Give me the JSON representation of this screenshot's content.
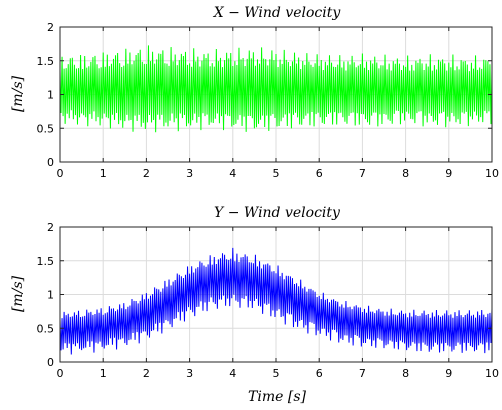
{
  "chart_data": [
    {
      "type": "line",
      "title": "X − Wind velocity",
      "ylabel": "[m/s]",
      "xlabel": "",
      "xlim": [
        0,
        10
      ],
      "ylim": [
        0,
        2
      ],
      "xticks": [
        "0",
        "1",
        "2",
        "3",
        "4",
        "5",
        "6",
        "7",
        "8",
        "9",
        "10"
      ],
      "yticks": [
        "0",
        "0.5",
        "1",
        "1.5",
        "2"
      ],
      "grid": true,
      "color": "#00ff00",
      "series": [
        {
          "x": [
            0,
            0.5,
            1,
            1.5,
            2,
            2.5,
            3,
            3.5,
            4,
            4.5,
            5,
            5.5,
            6,
            6.5,
            7,
            7.5,
            8,
            8.5,
            9,
            9.5,
            10
          ],
          "mean": [
            1.05,
            1.05,
            1.05,
            1.05,
            1.05,
            1.05,
            1.05,
            1.05,
            1.05,
            1.05,
            1.05,
            1.05,
            1.05,
            1.05,
            1.05,
            1.05,
            1.05,
            1.05,
            1.05,
            1.05,
            1.05
          ],
          "upper": [
            1.6,
            1.62,
            1.65,
            1.7,
            1.75,
            1.72,
            1.7,
            1.68,
            1.7,
            1.72,
            1.7,
            1.65,
            1.62,
            1.6,
            1.62,
            1.6,
            1.58,
            1.6,
            1.6,
            1.58,
            1.6
          ],
          "lower": [
            0.55,
            0.52,
            0.5,
            0.45,
            0.42,
            0.45,
            0.45,
            0.48,
            0.45,
            0.42,
            0.45,
            0.48,
            0.5,
            0.52,
            0.5,
            0.5,
            0.55,
            0.5,
            0.5,
            0.52,
            0.55
          ]
        }
      ]
    },
    {
      "type": "line",
      "title": "Y − Wind velocity",
      "ylabel": "[m/s]",
      "xlabel": "Time [s]",
      "xlim": [
        0,
        10
      ],
      "ylim": [
        0,
        2
      ],
      "xticks": [
        "0",
        "1",
        "2",
        "3",
        "4",
        "5",
        "6",
        "7",
        "8",
        "9",
        "10"
      ],
      "yticks": [
        "0",
        "0.5",
        "1",
        "1.5",
        "2"
      ],
      "grid": true,
      "color": "#0000ff",
      "series": [
        {
          "x": [
            0,
            0.5,
            1,
            1.5,
            2,
            2.5,
            3,
            3.5,
            4,
            4.5,
            5,
            5.5,
            6,
            6.5,
            7,
            7.5,
            8,
            8.5,
            9,
            9.5,
            10
          ],
          "mean": [
            0.5,
            0.52,
            0.55,
            0.62,
            0.75,
            0.92,
            1.1,
            1.22,
            1.25,
            1.22,
            1.1,
            0.95,
            0.8,
            0.68,
            0.6,
            0.55,
            0.52,
            0.5,
            0.5,
            0.5,
            0.5
          ],
          "upper": [
            0.75,
            0.78,
            0.82,
            0.9,
            1.05,
            1.25,
            1.45,
            1.6,
            1.7,
            1.6,
            1.45,
            1.25,
            1.05,
            0.92,
            0.85,
            0.8,
            0.78,
            0.78,
            0.78,
            0.78,
            0.8
          ],
          "lower": [
            0.1,
            0.12,
            0.15,
            0.2,
            0.3,
            0.45,
            0.62,
            0.75,
            0.8,
            0.75,
            0.6,
            0.45,
            0.35,
            0.25,
            0.2,
            0.18,
            0.15,
            0.12,
            0.12,
            0.12,
            0.12
          ]
        }
      ]
    }
  ]
}
